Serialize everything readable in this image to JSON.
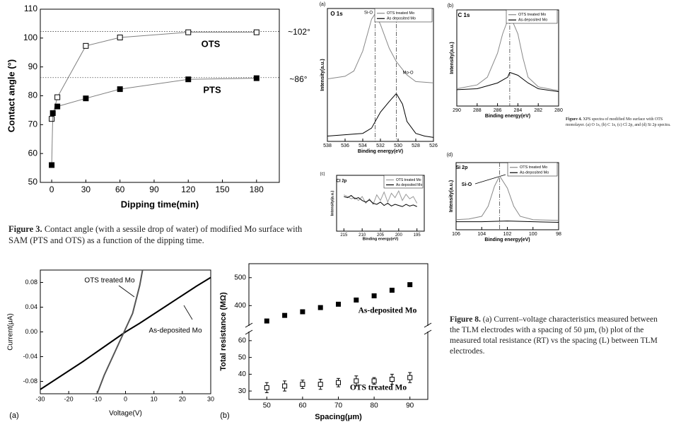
{
  "chart_data": [
    {
      "type": "line",
      "xlabel": "Dipping time(min)",
      "ylabel": "Contact angle (°)",
      "xlim": [
        -10,
        200
      ],
      "xticks": [
        0,
        30,
        60,
        90,
        120,
        150,
        180
      ],
      "ylim": [
        50,
        110
      ],
      "yticks": [
        50,
        60,
        70,
        80,
        90,
        100,
        110
      ],
      "ref_y": [
        102.3,
        86.3
      ],
      "series": [
        {
          "name": "OTS",
          "color": "#000000",
          "marker": "square-open",
          "x": [
            0,
            5,
            30,
            60,
            120,
            180
          ],
          "values": [
            72,
            79.5,
            97.3,
            100.2,
            102,
            102
          ]
        },
        {
          "name": "PTS",
          "color": "#000000",
          "marker": "square-filled",
          "x": [
            0,
            1,
            5,
            30,
            60,
            120,
            180
          ],
          "values": [
            56,
            74,
            76.3,
            79.1,
            82.3,
            85.7,
            86.1
          ]
        }
      ],
      "annotations": [
        "OTS",
        "PTS",
        "~102°",
        "~86°"
      ]
    },
    {
      "type": "line",
      "xlabel": "Binding energy(eV)",
      "ylabel": "Intensity(a.u.)",
      "xlim": [
        538,
        526
      ],
      "xticks": [
        538,
        536,
        534,
        532,
        530,
        528,
        526
      ],
      "ylim": [
        0,
        100
      ],
      "ref_x": [
        532.6,
        530.2
      ],
      "legend": true,
      "series": [
        {
          "name": "OTS treated Mo",
          "color": "#888888",
          "x": [
            538,
            536,
            535,
            534,
            533,
            532.6,
            532,
            531,
            530.2,
            529,
            528,
            526
          ],
          "values": [
            47,
            49,
            53,
            68,
            92,
            96,
            88,
            70,
            60,
            50,
            45,
            44
          ]
        },
        {
          "name": "As deposited Mo",
          "color": "#000000",
          "x": [
            538,
            536,
            534,
            533,
            532,
            531,
            530.2,
            529.5,
            529,
            528,
            527,
            526
          ],
          "values": [
            4,
            5,
            6,
            10,
            22,
            30,
            36,
            28,
            15,
            6,
            4,
            3
          ]
        }
      ],
      "annotations": [
        "(a)",
        "O 1s",
        "Si-O",
        "Mo-O"
      ]
    },
    {
      "type": "line",
      "xlabel": "Binding energy(eV)",
      "ylabel": "Intensity(a.u.)",
      "xlim": [
        290,
        280
      ],
      "xticks": [
        290,
        288,
        286,
        284,
        282,
        280
      ],
      "ylim": [
        0,
        100
      ],
      "ref_x": [
        284.8
      ],
      "legend": true,
      "series": [
        {
          "name": "OTS treated Mo",
          "color": "#888888",
          "x": [
            290,
            288,
            287,
            286,
            285.5,
            284.8,
            284,
            283.5,
            283,
            282,
            280
          ],
          "values": [
            18,
            22,
            30,
            55,
            75,
            95,
            75,
            50,
            30,
            20,
            16
          ]
        },
        {
          "name": "As-deposited Mo",
          "color": "#000000",
          "x": [
            290,
            288,
            286,
            285,
            284.8,
            284,
            283,
            282,
            280
          ],
          "values": [
            17,
            18,
            24,
            30,
            35,
            32,
            24,
            18,
            15
          ]
        }
      ],
      "annotations": [
        "(b)",
        "C 1s"
      ]
    },
    {
      "type": "line",
      "xlabel": "Binding energy(eV)",
      "ylabel": "Intensity(a.u.)",
      "xlim": [
        217,
        193
      ],
      "xticks": [
        215,
        210,
        205,
        200,
        195
      ],
      "ylim": [
        0,
        100
      ],
      "legend": true,
      "series": [
        {
          "name": "OTS treated Mo",
          "color": "#999999",
          "x": [
            215,
            214,
            213,
            212,
            211,
            210,
            209,
            208,
            207,
            206,
            205,
            204,
            203,
            202,
            201,
            200,
            199,
            198,
            197,
            196,
            195
          ],
          "values": [
            65,
            62,
            58,
            60,
            55,
            62,
            50,
            58,
            48,
            65,
            55,
            70,
            52,
            68,
            60,
            72,
            55,
            66,
            58,
            62,
            50
          ]
        },
        {
          "name": "As deposited Mo",
          "color": "#000000",
          "x": [
            215,
            214,
            213,
            212,
            211,
            210,
            209,
            208,
            207,
            206,
            205,
            204,
            203,
            202,
            201,
            200,
            199,
            198,
            197,
            196,
            195
          ],
          "values": [
            62,
            60,
            64,
            58,
            60,
            55,
            52,
            56,
            50,
            48,
            52,
            46,
            50,
            45,
            48,
            46,
            44,
            48,
            45,
            47,
            44
          ]
        }
      ],
      "annotations": [
        "(c)",
        "Cl 2p"
      ]
    },
    {
      "type": "line",
      "xlabel": "Binding energy(eV)",
      "ylabel": "Intensity(a.u.)",
      "xlim": [
        106,
        98
      ],
      "xticks": [
        106,
        104,
        102,
        100,
        98
      ],
      "ylim": [
        0,
        100
      ],
      "ref_x": [
        102.6
      ],
      "legend": true,
      "series": [
        {
          "name": "OTS treated Mo",
          "color": "#888888",
          "x": [
            106,
            105,
            104,
            103.5,
            103,
            102.6,
            102,
            101.5,
            101,
            100,
            98
          ],
          "values": [
            15,
            16,
            20,
            35,
            65,
            80,
            62,
            35,
            20,
            15,
            14
          ]
        },
        {
          "name": "As-deposited Mo",
          "color": "#000000",
          "x": [
            106,
            104,
            102,
            100,
            98
          ],
          "values": [
            12,
            12,
            13,
            12,
            11
          ]
        }
      ],
      "annotations": [
        "(d)",
        "Si 2p",
        "Si-O"
      ]
    },
    {
      "type": "line",
      "xlabel": "Voltage(V)",
      "ylabel": "Current(μA)",
      "xlim": [
        -30,
        30
      ],
      "xticks": [
        -30,
        -20,
        -10,
        0,
        10,
        20,
        30
      ],
      "ylim": [
        -0.1,
        0.1
      ],
      "yticks": [
        -0.08,
        -0.04,
        {
          "value": 0,
          "label": "0.00"
        },
        0.04,
        0.08
      ],
      "series": [
        {
          "name": "As-deposited Mo",
          "color": "#000000",
          "x": [
            -30,
            -25,
            -20,
            -15,
            -10,
            -5,
            0,
            5,
            10,
            15,
            20,
            25,
            30
          ],
          "values": [
            -0.093,
            -0.078,
            -0.063,
            -0.048,
            -0.032,
            -0.016,
            0,
            0.014,
            0.029,
            0.044,
            0.059,
            0.074,
            0.088
          ]
        },
        {
          "name": "OTS treated Mo",
          "color": "#555555",
          "x": [
            -10,
            -7.5,
            -5,
            -2.5,
            0,
            2.5,
            5,
            6
          ],
          "values": [
            -0.1,
            -0.07,
            -0.045,
            -0.02,
            0.005,
            0.03,
            0.075,
            0.1
          ]
        }
      ],
      "annotations": [
        "OTS treated Mo",
        "As-deposited Mo",
        "(a)"
      ]
    },
    {
      "type": "scatter",
      "xlabel": "Spacing(μm)",
      "ylabel": "Total resistance (MΩ)",
      "broken_axis": true,
      "xlim": [
        45,
        95
      ],
      "xticks": [
        50,
        60,
        70,
        80,
        90
      ],
      "ylim": [
        25,
        65
      ],
      "yticks": [
        30,
        40,
        50,
        60
      ],
      "y2lim": [
        330,
        550
      ],
      "y2ticks": [
        400,
        500
      ],
      "series": [
        {
          "name": "As-deposited Mo",
          "color": "#000000",
          "marker": "square-filled",
          "axis": "y2",
          "x": [
            50,
            55,
            60,
            65,
            70,
            75,
            80,
            85,
            90
          ],
          "values": [
            345,
            365,
            378,
            393,
            405,
            420,
            435,
            455,
            475
          ]
        },
        {
          "name": "OTS treated Mo",
          "color": "#000000",
          "marker": "square-open",
          "x": [
            50,
            55,
            60,
            65,
            70,
            75,
            80,
            85,
            90
          ],
          "values": [
            32,
            33,
            34,
            34,
            35,
            36,
            36,
            37,
            38
          ],
          "errors": [
            3,
            3,
            2.5,
            3,
            2.5,
            3,
            2,
            3,
            3
          ]
        }
      ],
      "annotations": [
        "As-deposited Mo",
        "OTS treated Mo",
        "(b)"
      ]
    }
  ],
  "figure_3_caption": {
    "label": "Figure 3.",
    "text": "Contact angle (with a sessile drop of water) of modified Mo surface with SAM (PTS and OTS) as a function of the dipping time."
  },
  "figure_4_caption": {
    "label": "Figure 4.",
    "text": "XPS spectra of modified Mo surface with OTS monolayer. (a) O 1s, (b) C 1s, (c) Cl 2p, and (d) Si 2p spectra."
  },
  "figure_8_caption": {
    "label": "Figure 8.",
    "text": "(a) Current–voltage characteristics measured between the TLM electrodes with a spacing of 50 µm, (b) plot of the measured total resistance (RT) vs the spacing (L) between TLM electrodes."
  }
}
